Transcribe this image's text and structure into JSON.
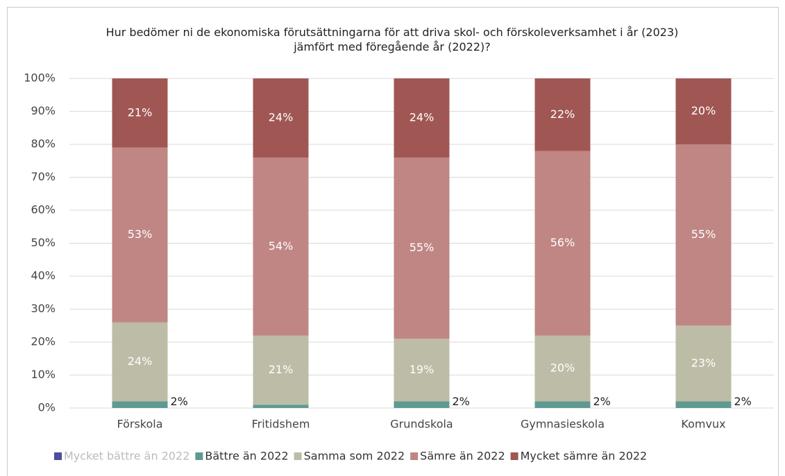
{
  "chart_data": {
    "type": "stacked_bar",
    "title": "Hur bedömer ni de ekonomiska förutsättningarna för att driva skol- och förskoleverksamhet i år (2023) jämfört med föregående år (2022)?",
    "categories": [
      "Förskola",
      "Fritidshem",
      "Grundskola",
      "Gymnasieskola",
      "Komvux"
    ],
    "series": [
      {
        "name": "Mycket bättre än 2022",
        "color": "#4e4e9c",
        "values": [
          0,
          0,
          0,
          0,
          0
        ],
        "value_labels": [
          null,
          null,
          null,
          null,
          null
        ]
      },
      {
        "name": "Bättre än 2022",
        "color": "#5f9a92",
        "values": [
          2,
          1,
          2,
          2,
          2
        ],
        "value_labels": [
          "2%",
          null,
          "2%",
          "2%",
          "2%"
        ]
      },
      {
        "name": "Samma som 2022",
        "color": "#bdbca6",
        "values": [
          24,
          21,
          19,
          20,
          23
        ],
        "value_labels": [
          "24%",
          "21%",
          "19%",
          "20%",
          "23%"
        ]
      },
      {
        "name": "Sämre än 2022",
        "color": "#c08684",
        "values": [
          53,
          54,
          55,
          56,
          55
        ],
        "value_labels": [
          "53%",
          "54%",
          "55%",
          "56%",
          "55%"
        ]
      },
      {
        "name": "Mycket sämre än 2022",
        "color": "#a05754",
        "values": [
          21,
          24,
          24,
          22,
          20
        ],
        "value_labels": [
          "21%",
          "24%",
          "24%",
          "22%",
          "20%"
        ]
      }
    ],
    "ylim": [
      0,
      100
    ],
    "yticks": [
      {
        "value": 0,
        "label": "0%"
      },
      {
        "value": 10,
        "label": "10%"
      },
      {
        "value": 20,
        "label": "20%"
      },
      {
        "value": 30,
        "label": "30%"
      },
      {
        "value": 40,
        "label": "40%"
      },
      {
        "value": 50,
        "label": "50%"
      },
      {
        "value": 60,
        "label": "60%"
      },
      {
        "value": 70,
        "label": "70%"
      },
      {
        "value": 80,
        "label": "80%"
      },
      {
        "value": 90,
        "label": "90%"
      },
      {
        "value": 100,
        "label": "100%"
      }
    ],
    "grid": true,
    "legend": "bottom"
  }
}
